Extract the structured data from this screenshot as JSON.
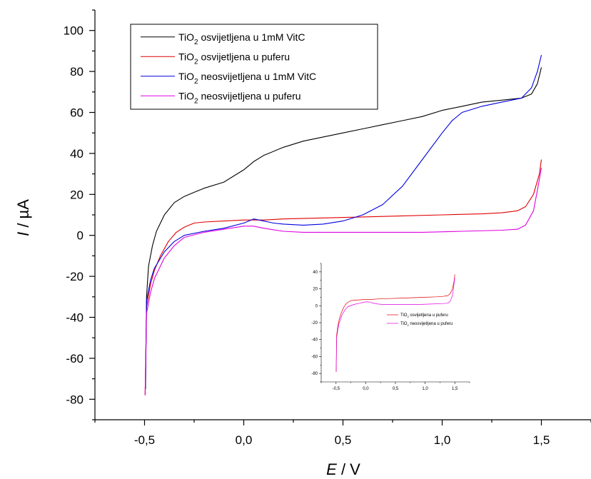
{
  "chart_data": [
    {
      "type": "line",
      "xlabel_italic": "E",
      "xlabel_rest": " / V",
      "ylabel_italic": "I",
      "ylabel_rest": " / µA",
      "xlim": [
        -0.75,
        1.75
      ],
      "ylim": [
        -90,
        110
      ],
      "x_ticks": [
        -0.5,
        0.0,
        0.5,
        1.0,
        1.5
      ],
      "x_tick_labels": [
        "-0,5",
        "0,0",
        "0,5",
        "1,0",
        "1,5"
      ],
      "y_ticks": [
        -80,
        -60,
        -40,
        -20,
        0,
        20,
        40,
        60,
        80,
        100
      ],
      "y_tick_labels": [
        "-80",
        "-60",
        "-40",
        "-20",
        "0",
        "20",
        "40",
        "60",
        "80",
        "100"
      ],
      "grid": false,
      "legend_position": "top-left",
      "series": [
        {
          "name_main": "TiO",
          "name_sub": "2",
          "name_rest": " osvijetljena u 1mM VitC",
          "color": "#000000",
          "x": [
            -0.495,
            -0.49,
            -0.48,
            -0.46,
            -0.44,
            -0.4,
            -0.35,
            -0.3,
            -0.25,
            -0.2,
            -0.1,
            0.0,
            0.05,
            0.1,
            0.2,
            0.3,
            0.4,
            0.5,
            0.6,
            0.7,
            0.8,
            0.9,
            1.0,
            1.1,
            1.2,
            1.3,
            1.4,
            1.45,
            1.48,
            1.5
          ],
          "y": [
            -75,
            -30,
            -15,
            -5,
            2,
            10,
            16,
            19,
            21,
            23,
            26,
            32,
            36,
            39,
            43,
            46,
            48,
            50,
            52,
            54,
            56,
            58,
            61,
            63,
            65,
            66,
            67,
            69,
            74,
            82
          ]
        },
        {
          "name_main": "TiO",
          "name_sub": "2",
          "name_rest": " osvijetljena u puferu",
          "color": "#e00000",
          "x": [
            -0.497,
            -0.49,
            -0.47,
            -0.45,
            -0.42,
            -0.38,
            -0.34,
            -0.3,
            -0.25,
            -0.2,
            -0.1,
            0.0,
            0.1,
            0.2,
            0.4,
            0.6,
            0.8,
            1.0,
            1.2,
            1.3,
            1.38,
            1.42,
            1.46,
            1.49,
            1.5
          ],
          "y": [
            -78,
            -35,
            -24,
            -17,
            -10,
            -3,
            1.5,
            4,
            6,
            6.5,
            7,
            7.5,
            7.5,
            8,
            8.5,
            9,
            9.5,
            10,
            10.5,
            11,
            12,
            14,
            20,
            30,
            37
          ]
        },
        {
          "name_main": "TiO",
          "name_sub": "2",
          "name_rest": " neosvijetljena u 1mM VitC",
          "color": "#0000e0",
          "x": [
            -0.495,
            -0.49,
            -0.47,
            -0.45,
            -0.4,
            -0.35,
            -0.3,
            -0.2,
            -0.1,
            0.0,
            0.05,
            0.1,
            0.15,
            0.2,
            0.3,
            0.4,
            0.5,
            0.6,
            0.7,
            0.8,
            0.9,
            1.0,
            1.05,
            1.1,
            1.2,
            1.3,
            1.4,
            1.45,
            1.48,
            1.5
          ],
          "y": [
            -72,
            -32,
            -22,
            -16,
            -8,
            -3,
            0,
            2,
            3.5,
            6,
            8,
            7,
            6,
            5.5,
            5,
            5.5,
            7,
            10,
            15,
            24,
            37,
            50,
            56,
            60,
            63,
            65,
            67,
            72,
            80,
            88
          ]
        },
        {
          "name_main": "TiO",
          "name_sub": "2",
          "name_rest": " neosvijetljena u puferu",
          "color": "#e000e0",
          "x": [
            -0.497,
            -0.49,
            -0.47,
            -0.45,
            -0.4,
            -0.35,
            -0.3,
            -0.2,
            -0.1,
            0.0,
            0.05,
            0.1,
            0.2,
            0.3,
            0.5,
            0.7,
            0.9,
            1.1,
            1.3,
            1.38,
            1.42,
            1.46,
            1.48,
            1.5
          ],
          "y": [
            -78,
            -38,
            -28,
            -21,
            -11,
            -5,
            -1,
            1.5,
            3,
            4.5,
            4.5,
            3.5,
            2,
            1.5,
            1.5,
            1.5,
            1.5,
            2,
            2.5,
            3,
            5,
            12,
            22,
            33
          ]
        }
      ]
    },
    {
      "type": "line",
      "xlim": [
        -0.75,
        1.75
      ],
      "ylim": [
        -90,
        50
      ],
      "x_ticks": [
        -0.5,
        0.0,
        0.5,
        1.0,
        1.5
      ],
      "x_tick_labels": [
        "-0,5",
        "0,0",
        "0,5",
        "1,0",
        "1,5"
      ],
      "y_ticks": [
        -80,
        -60,
        -40,
        -20,
        0,
        20,
        40
      ],
      "y_tick_labels": [
        "-80",
        "-60",
        "-40",
        "-20",
        "0",
        "20",
        "40"
      ],
      "grid": false,
      "legend_position": "center-right",
      "series": [
        {
          "name_main": "TiO",
          "name_sub": "2",
          "name_rest": " osvijetljena u puferu",
          "color": "#e00000",
          "x": [
            -0.497,
            -0.49,
            -0.47,
            -0.45,
            -0.42,
            -0.38,
            -0.34,
            -0.3,
            -0.25,
            -0.2,
            -0.1,
            0.0,
            0.1,
            0.2,
            0.4,
            0.6,
            0.8,
            1.0,
            1.2,
            1.3,
            1.38,
            1.42,
            1.46,
            1.49,
            1.5
          ],
          "y": [
            -78,
            -35,
            -24,
            -17,
            -10,
            -3,
            1.5,
            4,
            6,
            6.5,
            7,
            7.5,
            7.5,
            8,
            8.5,
            9,
            9.5,
            10,
            10.5,
            11,
            12,
            14,
            20,
            30,
            37
          ]
        },
        {
          "name_main": "TiO",
          "name_sub": "2",
          "name_rest": " neosvijetljena u puferu",
          "color": "#e000e0",
          "x": [
            -0.497,
            -0.49,
            -0.47,
            -0.45,
            -0.4,
            -0.35,
            -0.3,
            -0.2,
            -0.1,
            0.0,
            0.05,
            0.1,
            0.2,
            0.3,
            0.5,
            0.7,
            0.9,
            1.1,
            1.3,
            1.38,
            1.42,
            1.46,
            1.48,
            1.5
          ],
          "y": [
            -78,
            -38,
            -28,
            -21,
            -11,
            -5,
            -1,
            1.5,
            3,
            4.5,
            4.5,
            3.5,
            2,
            1.5,
            1.5,
            1.5,
            1.5,
            2,
            2.5,
            3,
            5,
            12,
            22,
            33
          ]
        }
      ]
    }
  ]
}
